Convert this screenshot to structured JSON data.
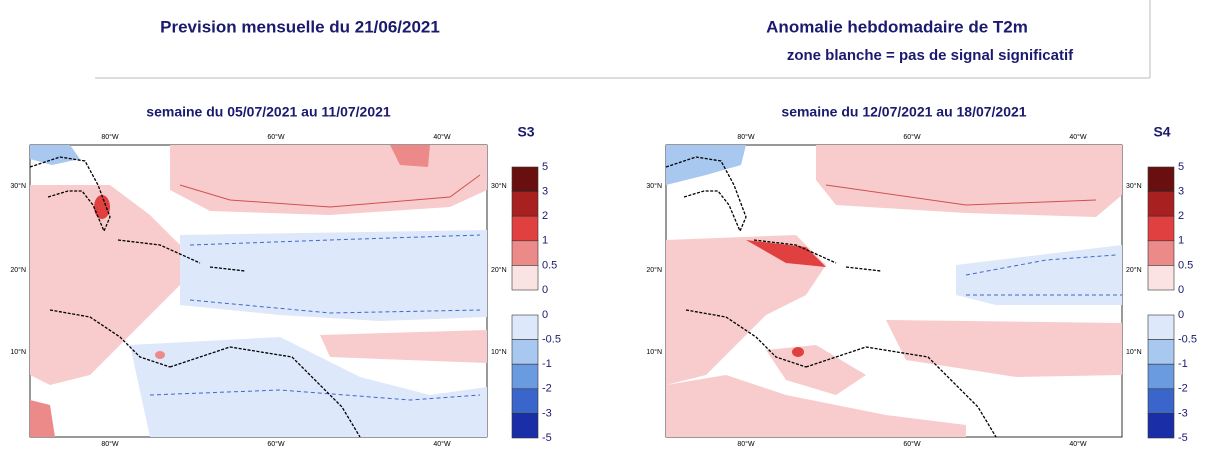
{
  "header": {
    "title": "Prevision mensuelle du 21/06/2021",
    "subtitle": "Anomalie hebdomadaire de T2m",
    "note": "zone blanche = pas de signal significatif"
  },
  "panels": [
    {
      "title": "semaine du 05/07/2021 au 11/07/2021",
      "label": "S3"
    },
    {
      "title": "semaine du 12/07/2021 au 18/07/2021",
      "label": "S4"
    }
  ],
  "lon_labels": [
    "80°W",
    "60°W",
    "40°W"
  ],
  "lat_labels": [
    "30°N",
    "20°N",
    "10°N"
  ],
  "colorbar": {
    "positive": [
      "5",
      "3",
      "2",
      "1",
      "0.5",
      "0"
    ],
    "negative": [
      "0",
      "-0.5",
      "-1",
      "-2",
      "-3",
      "-5"
    ]
  }
}
